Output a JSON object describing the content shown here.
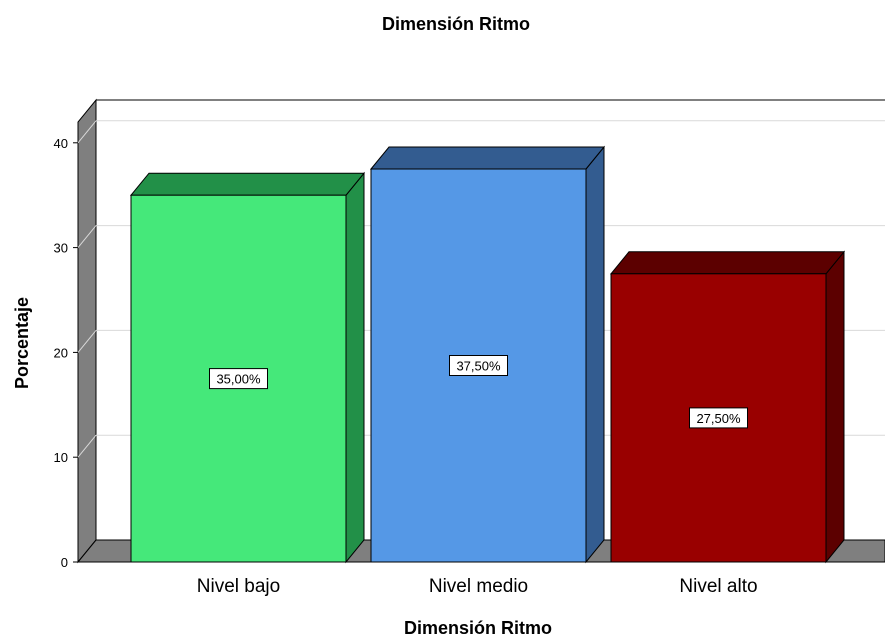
{
  "chart_data": {
    "type": "bar",
    "title": "Dimensión Ritmo",
    "xlabel": "Dimensión Ritmo",
    "ylabel": "Porcentaje",
    "categories": [
      "Nivel bajo",
      "Nivel medio",
      "Nivel alto"
    ],
    "values": [
      35.0,
      37.5,
      27.5
    ],
    "data_labels": [
      "35,00%",
      "37,50%",
      "27,50%"
    ],
    "colors": [
      "#45E87A",
      "#5598E6",
      "#990000"
    ],
    "side_colors": [
      "#229048",
      "#335C90",
      "#5C0000"
    ],
    "ylim": [
      0,
      40
    ],
    "yticks": [
      "0",
      "10",
      "20",
      "30",
      "40"
    ],
    "grid": true,
    "style": "3d"
  }
}
